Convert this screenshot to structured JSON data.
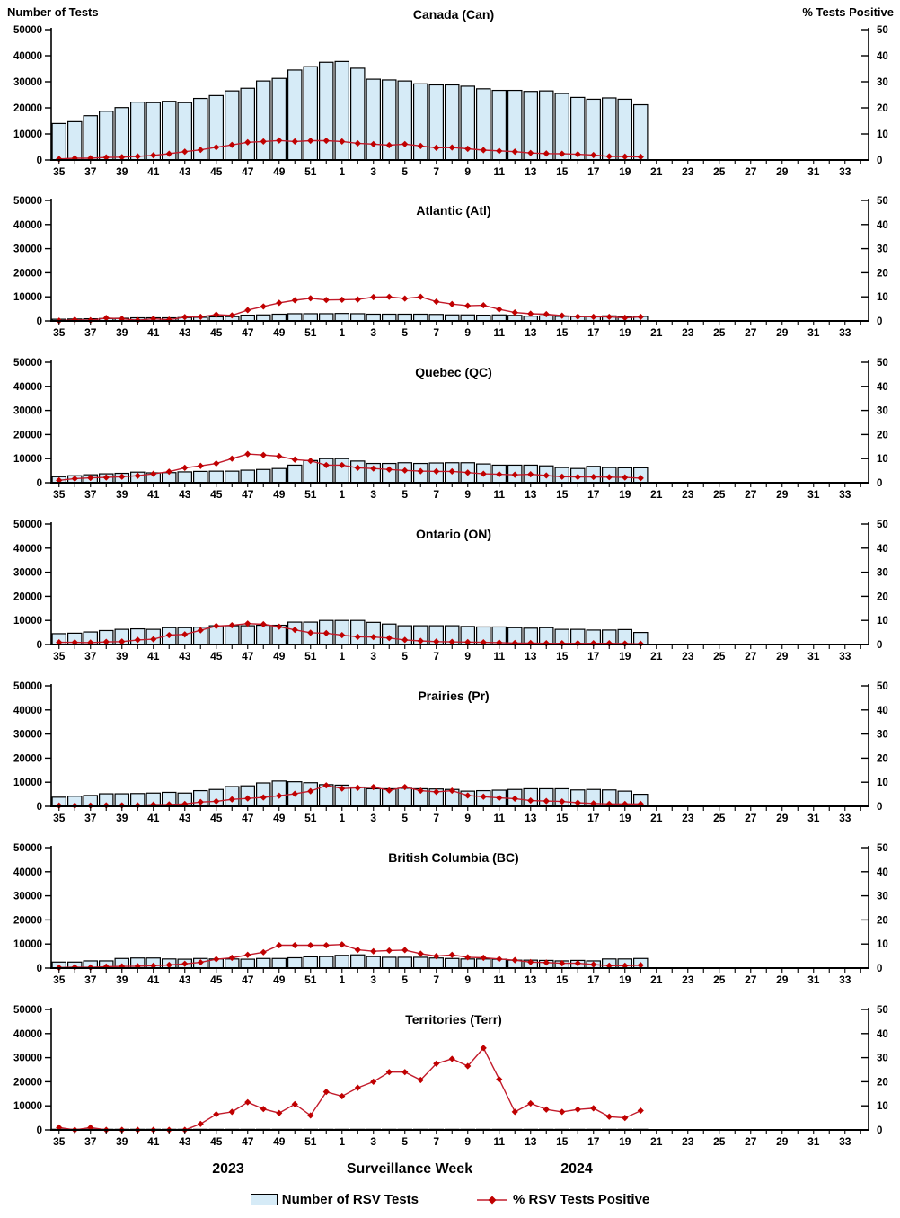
{
  "page": {
    "left_axis_title": "Number of Tests",
    "right_axis_title": "% Tests Positive",
    "x_axis_title": "Surveillance Week",
    "year_left": "2023",
    "year_right": "2024",
    "legend_bar_label": "Number of RSV Tests",
    "legend_line_label": "% RSV Tests Positive"
  },
  "colors": {
    "bar_fill": "#D6EBF7",
    "bar_stroke": "#000000",
    "line": "#C21B2B",
    "marker": "#C00000",
    "axis": "#000000"
  },
  "axes": {
    "left_ticks": [
      "50000",
      "40000",
      "30000",
      "20000",
      "10000",
      "0"
    ],
    "right_ticks": [
      "50",
      "40",
      "30",
      "20",
      "10",
      "0"
    ],
    "left_range": [
      0,
      50000
    ],
    "right_range": [
      0,
      50
    ],
    "week_tick_labels": [
      "35",
      "37",
      "39",
      "41",
      "43",
      "45",
      "47",
      "49",
      "51",
      "1",
      "3",
      "5",
      "7",
      "9",
      "11",
      "13",
      "15",
      "17",
      "19",
      "21",
      "23",
      "25",
      "27",
      "29",
      "31",
      "33"
    ],
    "total_week_slots": 52,
    "data_weeks": [
      35,
      36,
      37,
      38,
      39,
      40,
      41,
      42,
      43,
      44,
      45,
      46,
      47,
      48,
      49,
      50,
      51,
      52,
      1,
      2,
      3,
      4,
      5,
      6,
      7,
      8,
      9,
      10,
      11,
      12,
      13,
      14,
      15,
      16,
      17,
      18,
      19,
      20
    ]
  },
  "chart_data": [
    {
      "type": "bar+line",
      "title": "Canada (Can)",
      "series": [
        {
          "name": "Number of RSV Tests",
          "yaxis": "left",
          "values": [
            14000,
            14700,
            17000,
            18700,
            20100,
            22200,
            22000,
            22500,
            22000,
            23600,
            24700,
            26500,
            27500,
            30300,
            31300,
            34500,
            35800,
            37500,
            37800,
            35200,
            31000,
            30700,
            30300,
            29200,
            28800,
            28800,
            28300,
            27300,
            26700,
            26700,
            26300,
            26500,
            25500,
            24000,
            23300,
            23800,
            23300,
            21200
          ]
        },
        {
          "name": "% RSV Tests Positive",
          "yaxis": "right",
          "values": [
            0.4,
            0.7,
            0.7,
            1.0,
            1.1,
            1.4,
            1.8,
            2.4,
            3.2,
            3.9,
            4.9,
            5.8,
            6.8,
            7.1,
            7.5,
            7.1,
            7.4,
            7.4,
            7.1,
            6.4,
            6.1,
            5.7,
            6.1,
            5.4,
            4.7,
            4.8,
            4.3,
            3.8,
            3.5,
            3.2,
            2.7,
            2.5,
            2.4,
            2.2,
            1.9,
            1.4,
            1.3,
            1.2
          ]
        }
      ]
    },
    {
      "type": "bar+line",
      "title": "Atlantic (Atl)",
      "series": [
        {
          "name": "Number of RSV Tests",
          "yaxis": "left",
          "values": [
            700,
            800,
            900,
            1000,
            1100,
            1300,
            1300,
            1300,
            1400,
            1500,
            1700,
            1800,
            2400,
            2500,
            2800,
            3000,
            3000,
            3000,
            3100,
            3000,
            2800,
            2800,
            2800,
            2800,
            2700,
            2500,
            2500,
            2400,
            2500,
            2300,
            2000,
            2100,
            1900,
            1800,
            1800,
            2100,
            1800,
            1900
          ]
        },
        {
          "name": "% RSV Tests Positive",
          "yaxis": "right",
          "values": [
            0.1,
            0.5,
            0.3,
            1.2,
            0.9,
            0.3,
            0.9,
            0.5,
            1.6,
            1.7,
            2.6,
            2.3,
            4.5,
            6.0,
            7.5,
            8.6,
            9.4,
            8.7,
            8.8,
            8.9,
            9.9,
            10.0,
            9.3,
            10.0,
            8.0,
            7.0,
            6.3,
            6.5,
            4.8,
            3.5,
            3.0,
            2.8,
            2.2,
            1.8,
            1.7,
            1.7,
            1.3,
            1.7
          ]
        }
      ]
    },
    {
      "type": "bar+line",
      "title": "Quebec (QC)",
      "series": [
        {
          "name": "Number of RSV Tests",
          "yaxis": "left",
          "values": [
            2500,
            2900,
            3300,
            3700,
            3900,
            4400,
            4100,
            4200,
            4500,
            4700,
            4800,
            4800,
            5200,
            5500,
            5900,
            7300,
            9200,
            10000,
            10000,
            9000,
            8000,
            8000,
            8300,
            8000,
            8200,
            8300,
            8300,
            7800,
            7300,
            7300,
            7300,
            7000,
            6300,
            5900,
            6800,
            6300,
            6200,
            6200
          ]
        },
        {
          "name": "% RSV Tests Positive",
          "yaxis": "right",
          "values": [
            1.0,
            1.7,
            2.0,
            2.2,
            2.5,
            2.9,
            3.7,
            4.6,
            6.2,
            7.0,
            8.0,
            10.0,
            11.9,
            11.5,
            11.0,
            9.6,
            9.1,
            7.3,
            7.3,
            6.2,
            5.9,
            5.5,
            5.1,
            4.8,
            4.7,
            4.7,
            4.2,
            3.7,
            3.5,
            3.3,
            3.5,
            3.0,
            2.5,
            2.4,
            2.4,
            2.3,
            2.2,
            1.9
          ]
        }
      ]
    },
    {
      "type": "bar+line",
      "title": "Ontario (ON)",
      "series": [
        {
          "name": "Number of RSV Tests",
          "yaxis": "left",
          "values": [
            4500,
            4700,
            5200,
            5800,
            6300,
            6500,
            6300,
            7000,
            7000,
            7200,
            7800,
            7800,
            7800,
            8000,
            8000,
            9300,
            9300,
            10000,
            10000,
            10000,
            9200,
            8500,
            7800,
            7800,
            7800,
            7800,
            7500,
            7300,
            7300,
            7000,
            6800,
            7000,
            6300,
            6300,
            6000,
            6000,
            6200,
            5000
          ]
        },
        {
          "name": "% RSV Tests Positive",
          "yaxis": "right",
          "values": [
            0.9,
            0.9,
            0.8,
            1.1,
            1.2,
            1.9,
            2.2,
            3.9,
            4.2,
            5.9,
            7.7,
            8.0,
            8.7,
            8.4,
            7.4,
            6.1,
            4.9,
            4.7,
            3.9,
            3.2,
            3.1,
            2.7,
            1.9,
            1.5,
            1.2,
            1.1,
            1.0,
            0.9,
            0.8,
            0.6,
            0.6,
            0.5,
            0.5,
            0.5,
            0.5,
            0.5,
            0.4,
            0.3
          ]
        }
      ]
    },
    {
      "type": "bar+line",
      "title": "Prairies (Pr)",
      "series": [
        {
          "name": "Number of RSV Tests",
          "yaxis": "left",
          "values": [
            3800,
            4200,
            4500,
            5200,
            5200,
            5300,
            5500,
            5800,
            5500,
            6500,
            7000,
            8200,
            8500,
            9700,
            10500,
            10200,
            9800,
            9000,
            8800,
            8000,
            7300,
            7300,
            7500,
            7300,
            7200,
            7000,
            6300,
            6500,
            6700,
            7000,
            7300,
            7300,
            7300,
            6800,
            7000,
            6800,
            6300,
            5000
          ]
        },
        {
          "name": "% RSV Tests Positive",
          "yaxis": "right",
          "values": [
            0.3,
            0.3,
            0.3,
            0.4,
            0.4,
            0.4,
            0.7,
            0.8,
            1.0,
            1.8,
            2.1,
            2.9,
            3.3,
            3.7,
            4.4,
            5.2,
            6.3,
            8.7,
            7.4,
            7.7,
            8.0,
            6.6,
            8.0,
            6.5,
            6.0,
            6.5,
            4.5,
            4.0,
            3.5,
            3.2,
            2.4,
            2.2,
            2.0,
            1.5,
            1.2,
            1.0,
            1.0,
            1.0
          ]
        }
      ]
    },
    {
      "type": "bar+line",
      "title": "British Columbia (BC)",
      "series": [
        {
          "name": "Number of RSV Tests",
          "yaxis": "left",
          "values": [
            2500,
            2500,
            3000,
            3000,
            4000,
            4200,
            4200,
            3800,
            3700,
            4000,
            3800,
            3800,
            3700,
            4000,
            4000,
            4300,
            4700,
            4800,
            5300,
            5500,
            4800,
            4500,
            4500,
            4500,
            4200,
            4000,
            3800,
            3800,
            3700,
            3300,
            3300,
            3200,
            3000,
            3200,
            3000,
            3800,
            3800,
            4000
          ]
        },
        {
          "name": "% RSV Tests Positive",
          "yaxis": "right",
          "values": [
            0.2,
            0.4,
            0.3,
            0.6,
            0.7,
            0.8,
            1.0,
            1.3,
            1.8,
            2.4,
            3.7,
            4.3,
            5.5,
            6.6,
            9.5,
            9.5,
            9.5,
            9.5,
            9.8,
            7.6,
            7.0,
            7.3,
            7.5,
            6.0,
            5.0,
            5.5,
            4.5,
            4.3,
            3.8,
            3.3,
            2.5,
            2.3,
            2.0,
            2.0,
            1.5,
            1.0,
            1.0,
            1.2
          ]
        }
      ]
    },
    {
      "type": "bar+line",
      "title": "Territories (Terr)",
      "series": [
        {
          "name": "Number of RSV Tests",
          "yaxis": "left",
          "values": [
            250,
            250,
            250,
            250,
            250,
            250,
            250,
            250,
            250,
            250,
            250,
            250,
            250,
            250,
            250,
            250,
            250,
            250,
            250,
            250,
            250,
            250,
            250,
            250,
            250,
            250,
            250,
            250,
            250,
            250,
            250,
            250,
            250,
            250,
            250,
            250,
            250,
            250
          ]
        },
        {
          "name": "% RSV Tests Positive",
          "yaxis": "right",
          "values": [
            1.0,
            0.0,
            1.0,
            0.0,
            0.0,
            0.0,
            0.0,
            0.0,
            0.0,
            2.5,
            6.5,
            7.5,
            11.5,
            8.7,
            7.0,
            10.7,
            6.0,
            15.8,
            14.0,
            17.5,
            20.0,
            24.0,
            24.0,
            20.7,
            27.5,
            29.5,
            26.5,
            34.0,
            21.0,
            7.5,
            11.0,
            8.5,
            7.5,
            8.5,
            9.0,
            5.5,
            5.0,
            8.0
          ]
        }
      ]
    }
  ]
}
